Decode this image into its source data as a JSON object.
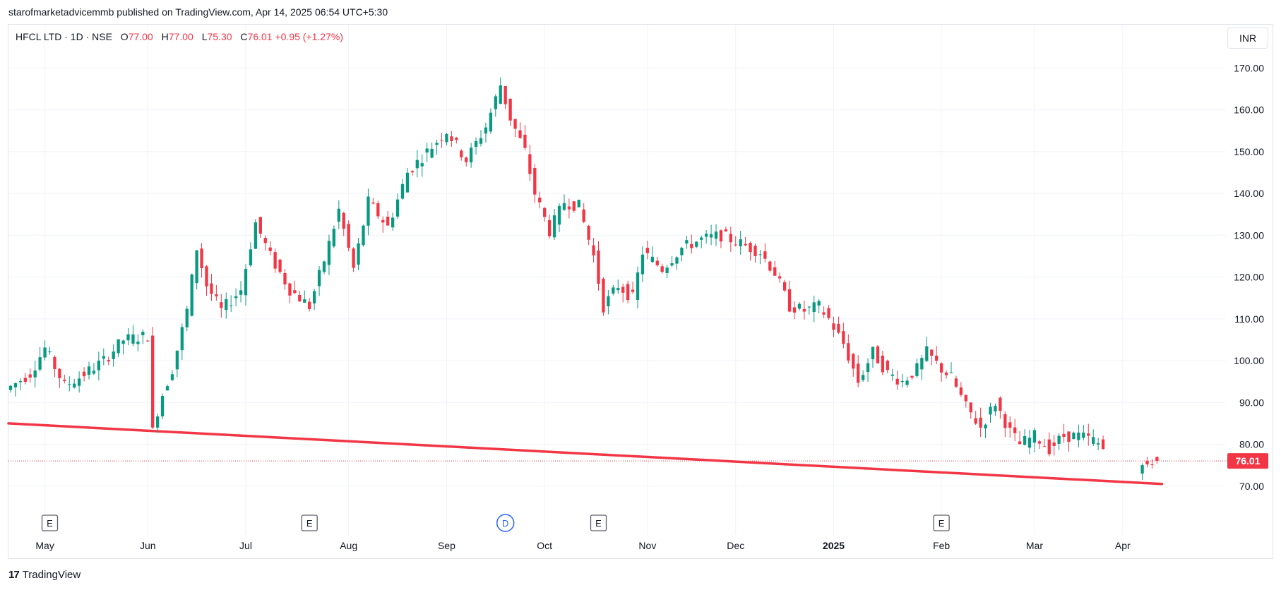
{
  "header": {
    "publisher_text": "starofmarketadvicemmb published on TradingView.com, Apr 14, 2025 06:54 UTC+5:30"
  },
  "legend": {
    "symbol": "HFCL LTD · 1D · NSE",
    "o_label": "O",
    "o_value": "77.00",
    "h_label": "H",
    "h_value": "77.00",
    "l_label": "L",
    "l_value": "75.30",
    "c_label": "C",
    "c_value": "76.01",
    "change": "+0.95 (+1.27%)"
  },
  "currency": "INR",
  "brand": {
    "logo_glyph": "17",
    "name": "TradingView"
  },
  "colors": {
    "up": "#089981",
    "down": "#f23645",
    "grid": "#f0f3fa",
    "trendline": "#f23645",
    "text": "#131722",
    "dividend_marker": "#2962ff"
  },
  "chart_data": {
    "type": "candlestick",
    "last_price": 76.01,
    "last_price_label": "76.01",
    "ylim": [
      60,
      177
    ],
    "y_ticks": [
      {
        "value": 70,
        "label": "70.00"
      },
      {
        "value": 80,
        "label": "80.00"
      },
      {
        "value": 90,
        "label": "90.00"
      },
      {
        "value": 100,
        "label": "100.00"
      },
      {
        "value": 110,
        "label": "110.00"
      },
      {
        "value": 120,
        "label": "120.00"
      },
      {
        "value": 130,
        "label": "130.00"
      },
      {
        "value": 140,
        "label": "140.00"
      },
      {
        "value": 150,
        "label": "150.00"
      },
      {
        "value": 160,
        "label": "160.00"
      },
      {
        "value": 170,
        "label": "170.00"
      }
    ],
    "x_ticks": [
      {
        "label": "May",
        "index": 7,
        "bold": false
      },
      {
        "label": "Jun",
        "index": 28,
        "bold": false
      },
      {
        "label": "Jul",
        "index": 48,
        "bold": false
      },
      {
        "label": "Aug",
        "index": 69,
        "bold": false
      },
      {
        "label": "Sep",
        "index": 89,
        "bold": false
      },
      {
        "label": "Oct",
        "index": 109,
        "bold": false
      },
      {
        "label": "Nov",
        "index": 130,
        "bold": false
      },
      {
        "label": "Dec",
        "index": 148,
        "bold": false
      },
      {
        "label": "2025",
        "index": 168,
        "bold": true
      },
      {
        "label": "Feb",
        "index": 190,
        "bold": false
      },
      {
        "label": "Mar",
        "index": 209,
        "bold": false
      },
      {
        "label": "Apr",
        "index": 227,
        "bold": false
      }
    ],
    "event_markers": [
      {
        "letter": "E",
        "index": 8,
        "kind": "earnings"
      },
      {
        "letter": "E",
        "index": 61,
        "kind": "earnings"
      },
      {
        "letter": "D",
        "index": 101,
        "kind": "dividend"
      },
      {
        "letter": "E",
        "index": 120,
        "kind": "earnings"
      },
      {
        "letter": "E",
        "index": 190,
        "kind": "earnings"
      }
    ],
    "trendline": {
      "start": {
        "index": 0,
        "price": 85
      },
      "end": {
        "index": 235,
        "price": 70.5
      }
    },
    "candle_anchors": [
      [
        0,
        93
      ],
      [
        5,
        97
      ],
      [
        8,
        103
      ],
      [
        12,
        94
      ],
      [
        15,
        96
      ],
      [
        20,
        100
      ],
      [
        24,
        105
      ],
      [
        29,
        106
      ],
      [
        30,
        84
      ],
      [
        32,
        92
      ],
      [
        34,
        98
      ],
      [
        37,
        112
      ],
      [
        39,
        127
      ],
      [
        41,
        118
      ],
      [
        44,
        112
      ],
      [
        48,
        117
      ],
      [
        51,
        133
      ],
      [
        54,
        125
      ],
      [
        58,
        117
      ],
      [
        62,
        113
      ],
      [
        65,
        124
      ],
      [
        68,
        136
      ],
      [
        71,
        122
      ],
      [
        74,
        138
      ],
      [
        78,
        132
      ],
      [
        82,
        145
      ],
      [
        86,
        150
      ],
      [
        90,
        155
      ],
      [
        94,
        148
      ],
      [
        98,
        156
      ],
      [
        101,
        166
      ],
      [
        103,
        158
      ],
      [
        106,
        150
      ],
      [
        108,
        140
      ],
      [
        111,
        131
      ],
      [
        114,
        138
      ],
      [
        117,
        137
      ],
      [
        120,
        125
      ],
      [
        122,
        113
      ],
      [
        125,
        118
      ],
      [
        128,
        115
      ],
      [
        130,
        126
      ],
      [
        134,
        122
      ],
      [
        138,
        127
      ],
      [
        142,
        129
      ],
      [
        146,
        130
      ],
      [
        150,
        128
      ],
      [
        154,
        126
      ],
      [
        157,
        121
      ],
      [
        160,
        113
      ],
      [
        163,
        112
      ],
      [
        166,
        113
      ],
      [
        168,
        110
      ],
      [
        171,
        104
      ],
      [
        174,
        95
      ],
      [
        177,
        102
      ],
      [
        180,
        97
      ],
      [
        183,
        95
      ],
      [
        186,
        98
      ],
      [
        188,
        102
      ],
      [
        191,
        98
      ],
      [
        193,
        96
      ],
      [
        196,
        89
      ],
      [
        199,
        84
      ],
      [
        202,
        90
      ],
      [
        205,
        83
      ],
      [
        207,
        80
      ],
      [
        210,
        82
      ],
      [
        213,
        79
      ],
      [
        216,
        82
      ],
      [
        219,
        82
      ],
      [
        222,
        81
      ],
      [
        224,
        79
      ]
    ],
    "final_candles": [
      {
        "index": 231,
        "open": 73,
        "high": 75.5,
        "low": 71.5,
        "close": 75
      },
      {
        "index": 232,
        "open": 76,
        "high": 77,
        "low": 74.5,
        "close": 75.2
      },
      {
        "index": 233,
        "open": 75.2,
        "high": 76.5,
        "low": 74.2,
        "close": 75.1
      },
      {
        "index": 234,
        "open": 77,
        "high": 77,
        "low": 75.3,
        "close": 76.01
      }
    ],
    "index_range": [
      0,
      240
    ]
  }
}
